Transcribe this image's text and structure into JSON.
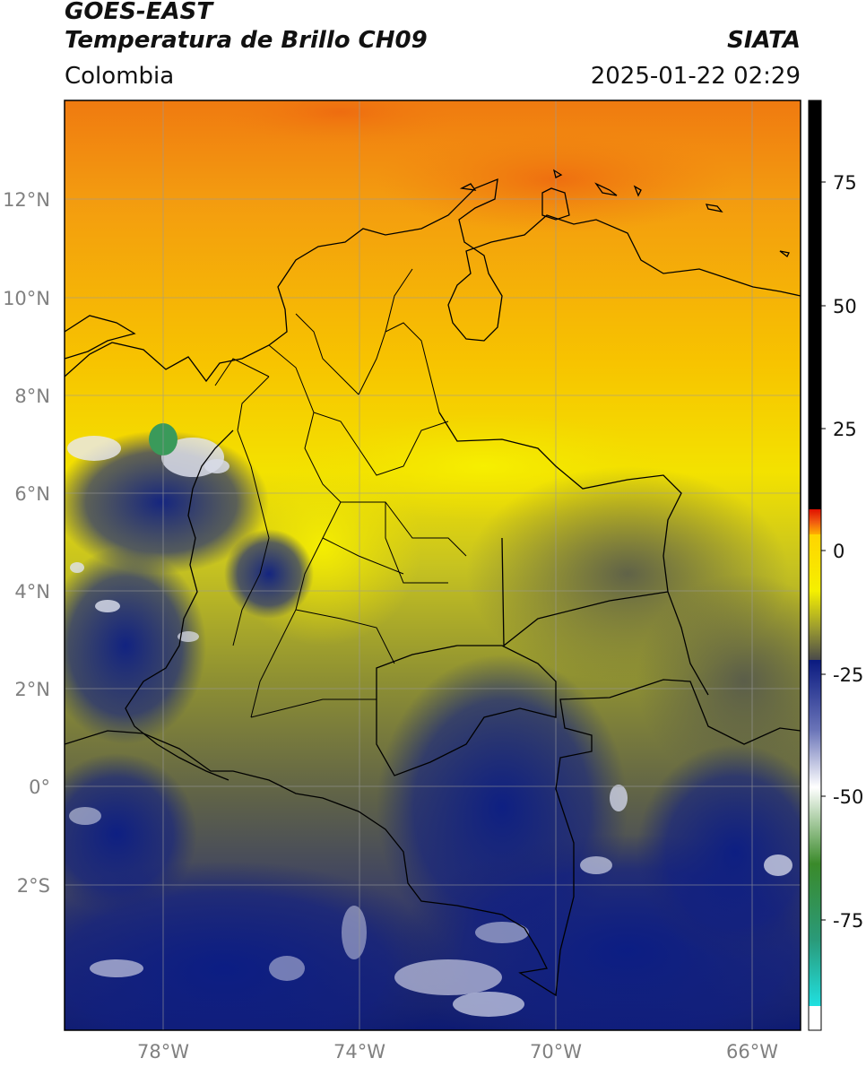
{
  "header": {
    "title_line1": "GOES-EAST",
    "title_line2": "Temperatura de Brillo CH09",
    "agency": "SIATA",
    "region": "Colombia",
    "timestamp": "2025-01-22 02:29"
  },
  "map": {
    "lat_labels": [
      "12°N",
      "10°N",
      "8°N",
      "6°N",
      "4°N",
      "2°N",
      "0°",
      "2°S"
    ],
    "lon_labels": [
      "78°W",
      "74°W",
      "70°W",
      "66°W"
    ],
    "lat_range": [
      -4.9,
      14.0
    ],
    "lon_range": [
      -80.0,
      -65.0
    ],
    "colors": {
      "warm_orange": "#f39a10",
      "yellow": "#f5e500",
      "olive": "#8f9132",
      "dark_grey": "#5a5a52",
      "navy": "#0b1d78",
      "white": "#ffffff",
      "green": "#3a8a3a",
      "cyan": "#20d0d0",
      "red": "#f01000",
      "black": "#000000"
    }
  },
  "colorbar": {
    "ticks": [
      "75",
      "50",
      "25",
      "0",
      "-25",
      "-50",
      "-75"
    ],
    "tick_values": [
      75,
      50,
      25,
      0,
      -25,
      -50,
      -75
    ],
    "range": [
      -95,
      90
    ]
  }
}
